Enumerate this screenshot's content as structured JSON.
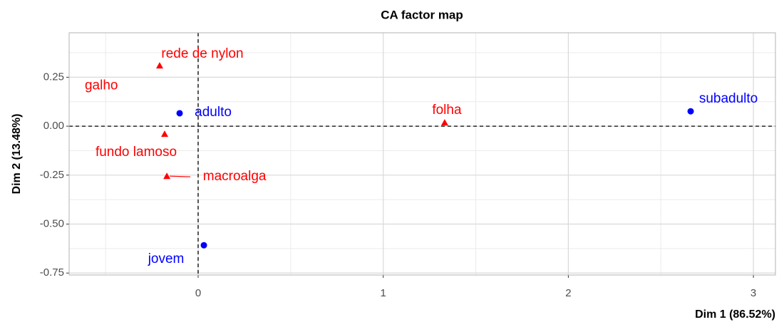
{
  "chart_data": {
    "type": "scatter",
    "title": "CA factor map",
    "xlabel": "Dim 1 (86.52%)",
    "ylabel": "Dim 2 (13.48%)",
    "xlim": [
      -0.697,
      3.119
    ],
    "ylim": [
      -0.76,
      0.477
    ],
    "xticks": [
      0,
      1,
      2,
      3
    ],
    "yticks": [
      {
        "value": -0.75,
        "label": "-0.75"
      },
      {
        "value": -0.5,
        "label": "-0.50"
      },
      {
        "value": -0.25,
        "label": "-0.25"
      },
      {
        "value": 0,
        "label": "0.00"
      },
      0.25
    ],
    "grid": true,
    "hline": 0,
    "vline": 0,
    "series": [
      {
        "color": "#ff0000",
        "marker": "triangle",
        "labels": [
          "rede de nylon",
          "galho",
          "fundo lamoso",
          "macroalga",
          "folha"
        ],
        "x": [
          -0.208,
          -0.75,
          -0.181,
          -0.169,
          1.332
        ],
        "values": [
          0.309,
          0.21,
          -0.04,
          -0.255,
          0.018
        ]
      },
      {
        "color": "#0000ff",
        "marker": "circle",
        "labels": [
          "adulto",
          "subadulto",
          "jovem"
        ],
        "x": [
          -0.1,
          2.661,
          0.031
        ],
        "values": [
          0.066,
          0.076,
          -0.608
        ]
      }
    ]
  }
}
